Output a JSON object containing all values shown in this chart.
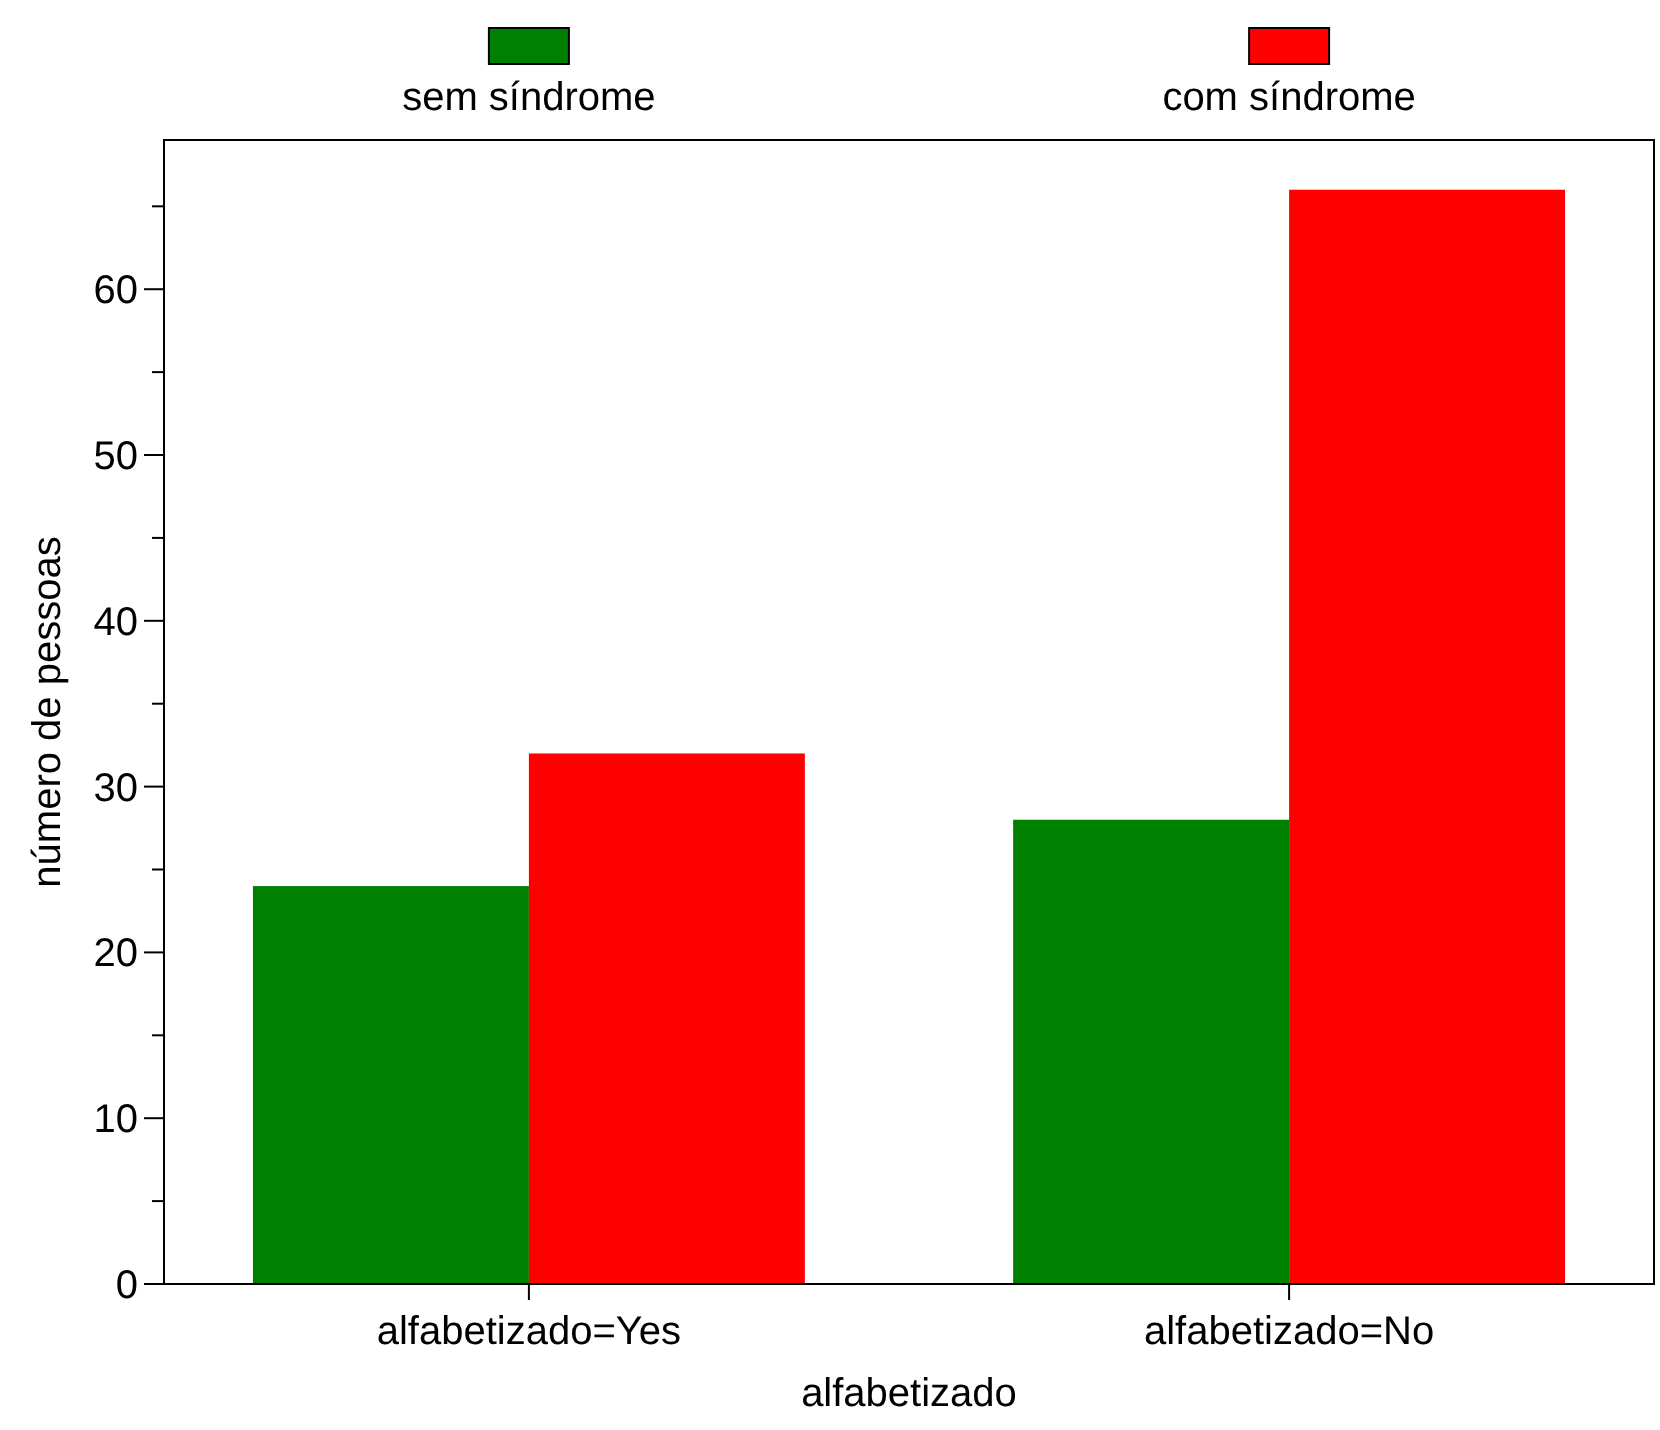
{
  "chart_data": {
    "type": "bar",
    "xlabel": "alfabetizado",
    "ylabel": "número de pessoas",
    "categories": [
      "alfabetizado=Yes",
      "alfabetizado=No"
    ],
    "series": [
      {
        "name": "sem síndrome",
        "color": "#008000",
        "values": [
          24,
          28
        ]
      },
      {
        "name": "com síndrome",
        "color": "#ff0000",
        "values": [
          32,
          66
        ]
      }
    ],
    "ylim": [
      0,
      69
    ],
    "yticks": [
      0,
      {
        "value": 5,
        "label": null
      },
      10,
      {
        "value": 15,
        "label": null
      },
      20,
      {
        "value": 25,
        "label": null
      },
      30,
      {
        "value": 35,
        "label": null
      },
      40,
      {
        "value": 45,
        "label": null
      },
      50,
      {
        "value": 55,
        "label": null
      },
      60,
      {
        "value": 65,
        "label": null
      }
    ],
    "legend": "top",
    "grid": false
  }
}
